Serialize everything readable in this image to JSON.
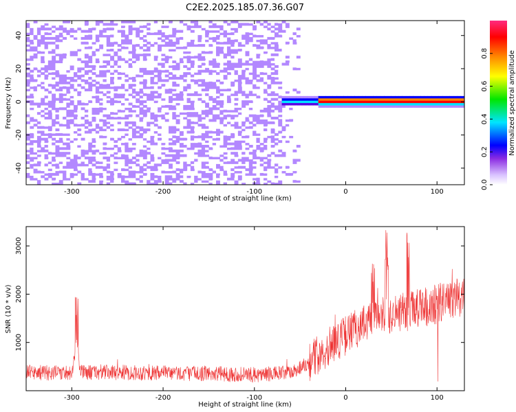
{
  "figure": {
    "title": "C2E2.2025.185.07.36.G07"
  },
  "chart_data": [
    {
      "type": "heatmap",
      "title": "C2E2.2025.185.07.36.G07",
      "xlabel": "Height of straight line (km)",
      "ylabel": "Frequency (Hz)",
      "xlim": [
        -350,
        130
      ],
      "ylim": [
        -50,
        49
      ],
      "xticks": [
        -300,
        -200,
        -100,
        0,
        100
      ],
      "yticks": [
        -40,
        -20,
        0,
        20,
        40
      ],
      "colorbar": {
        "label": "Normalized spectral amplitude",
        "range": [
          0.0,
          1.0
        ],
        "ticks": [
          0.0,
          0.2,
          0.4,
          0.6,
          0.8
        ],
        "tick_labels": [
          "0.0",
          "0.2",
          "0.4",
          "0.6",
          "0.8"
        ],
        "colormap": [
          "#ffffff",
          "#b388ff",
          "#5a00e6",
          "#0000ff",
          "#00e5ff",
          "#00e600",
          "#ffe600",
          "#ff8800",
          "#ff0000",
          "#ff2a7f"
        ]
      },
      "noise_region_x": [
        -350,
        -50
      ],
      "signal_start_x": -70,
      "signal_center_freq_hz": 0,
      "signal_peak_amplitude": 1.0,
      "grid": false
    },
    {
      "type": "line",
      "xlabel": "Height of straight line (km)",
      "ylabel": "SNR (10 * v/v)",
      "xlim": [
        -350,
        130
      ],
      "ylim": [
        0,
        3400
      ],
      "xticks": [
        -300,
        -200,
        -100,
        0,
        100
      ],
      "yticks": [
        1000,
        2000,
        3000
      ],
      "series": [
        {
          "color": "#ee3333",
          "x": [
            -350,
            -320,
            -300,
            -295,
            -290,
            -250,
            -200,
            -150,
            -100,
            -60,
            -40,
            -20,
            0,
            20,
            40,
            60,
            80,
            100,
            130
          ],
          "y": [
            380,
            370,
            380,
            1000,
            380,
            380,
            360,
            360,
            330,
            370,
            600,
            900,
            1150,
            1400,
            1550,
            1600,
            1700,
            1800,
            1950
          ],
          "spikes": [
            {
              "x": -295,
              "y": 1950
            },
            {
              "x": 45,
              "y": 3400
            },
            {
              "x": 68,
              "y": 3400
            },
            {
              "x": 30,
              "y": 2700
            }
          ]
        }
      ],
      "grid": false
    }
  ]
}
